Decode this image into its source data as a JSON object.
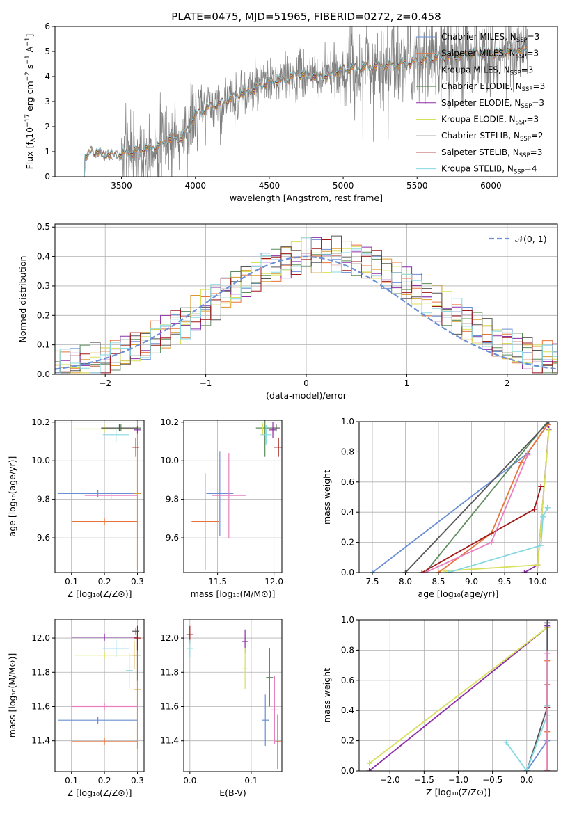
{
  "figure": {
    "title": "PLATE=0475, MJD=51965, FIBERID=0272, z=0.458"
  },
  "models": [
    {
      "name": "Chabrier MILES",
      "nssp": "3",
      "color": "#6a8fd4"
    },
    {
      "name": "Salpeter MILES",
      "nssp": "3",
      "color": "#e8743b"
    },
    {
      "name": "Kroupa MILES",
      "nssp": "3",
      "color": "#d99a2b"
    },
    {
      "name": "Chabrier ELODIE",
      "nssp": "3",
      "color": "#5c8a5c"
    },
    {
      "name": "Salpeter ELODIE",
      "nssp": "3",
      "color": "#8e2ca8"
    },
    {
      "name": "Kroupa ELODIE",
      "nssp": "3",
      "color": "#d7e05a"
    },
    {
      "name": "Chabrier STELIB",
      "nssp": "2",
      "color": "#555555"
    },
    {
      "name": "Salpeter STELIB",
      "nssp": "3",
      "color": "#a01818"
    },
    {
      "name": "Kroupa STELIB",
      "nssp": "4",
      "color": "#86d8e0"
    }
  ],
  "colors": {
    "data": "#808080",
    "gaussian": "#6a8fd4",
    "grid": "#b0b0b0",
    "pink": "#e87fbf"
  },
  "chart_data": [
    {
      "id": "spectrum",
      "type": "line",
      "title": "PLATE=0475, MJD=51965, FIBERID=0272, z=0.458",
      "xlabel": "wavelength [Angstrom, rest frame]",
      "ylabel": "Flux [f",
      "xlim": [
        3050,
        6450
      ],
      "ylim": [
        0,
        6
      ],
      "xticks": [
        "3500",
        "4000",
        "4500",
        "5000",
        "5500",
        "6000"
      ],
      "yticks": [
        "0",
        "1",
        "2",
        "3",
        "4",
        "5",
        "6"
      ],
      "x": [
        3250,
        3300,
        3350,
        3400,
        3450,
        3500,
        3550,
        3600,
        3650,
        3700,
        3750,
        3800,
        3850,
        3900,
        3950,
        4000,
        4100,
        4200,
        4300,
        4400,
        4500,
        4600,
        4700,
        4800,
        4900,
        5000,
        5100,
        5200,
        5300,
        5400,
        5500,
        5600,
        5700,
        5800,
        5900,
        6000,
        6100,
        6200
      ],
      "model_flux": [
        0.7,
        1.05,
        0.95,
        0.9,
        0.85,
        0.9,
        0.95,
        1.0,
        1.1,
        1.15,
        1.25,
        1.4,
        1.6,
        1.5,
        1.9,
        2.5,
        2.8,
        3.0,
        3.3,
        3.5,
        3.8,
        3.85,
        4.1,
        4.0,
        4.0,
        4.3,
        4.35,
        4.4,
        4.45,
        4.5,
        4.6,
        4.75,
        4.8,
        4.85,
        4.95,
        4.9,
        5.0,
        5.05
      ],
      "noise_scale": 0.55
    },
    {
      "id": "residuals",
      "type": "line",
      "xlabel": "(data-model)/error",
      "ylabel": "Normed distribution",
      "xlim": [
        -2.5,
        2.5
      ],
      "ylim": [
        0,
        0.51
      ],
      "xticks": [
        "−2",
        "−1",
        "0",
        "1",
        "2"
      ],
      "yticks": [
        "0.0",
        "0.1",
        "0.2",
        "0.3",
        "0.4",
        "0.5"
      ],
      "legend": "𝒩(0, 1)",
      "bin_width": 0.1
    },
    {
      "id": "age_vs_Z",
      "type": "scatter",
      "xlabel": "Z [log₁₀(Z/Z⊙)]",
      "ylabel": "age  [log₁₀(age/yr)]",
      "xlim": [
        0.05,
        0.32
      ],
      "ylim": [
        9.42,
        10.21
      ],
      "xticks": [
        "0.1",
        "0.2",
        "0.3"
      ],
      "yticks": [
        "9.6",
        "9.8",
        "10.0",
        "10.2"
      ],
      "points": [
        {
          "m": 0,
          "x": 0.18,
          "y": 9.83,
          "xerr": 0.12,
          "yerr": 0.0
        },
        {
          "m": 1,
          "x": 0.2,
          "y": 9.685,
          "xerr": 0.1,
          "yerr": 0.0
        },
        {
          "m": 2,
          "x": 0.3,
          "y": 9.83,
          "xerr": 0.0,
          "yerr": 0.4
        },
        {
          "m": 3,
          "x": 0.25,
          "y": 10.17,
          "xerr": 0.06,
          "yerr": 0.01
        },
        {
          "m": 4,
          "x": 0.3,
          "y": 10.16,
          "xerr": 0.0,
          "yerr": 0.02
        },
        {
          "m": 5,
          "x": 0.2,
          "y": 10.165,
          "xerr": 0.09,
          "yerr": 0.01
        },
        {
          "m": 6,
          "x": 0.245,
          "y": 10.17,
          "xerr": 0.055,
          "yerr": 0.01
        },
        {
          "m": 7,
          "x": 0.295,
          "y": 10.07,
          "xerr": 0.008,
          "yerr": 0.05
        },
        {
          "m": 8,
          "x": 0.235,
          "y": 10.135,
          "xerr": 0.04,
          "yerr": 0.04
        },
        {
          "m": 9,
          "x": 0.22,
          "y": 9.82,
          "xerr": 0.08,
          "yerr": 0.0
        }
      ]
    },
    {
      "id": "age_vs_mass",
      "type": "scatter",
      "xlabel": "mass [log₁₀(M/M⊙)]",
      "ylabel": "",
      "xlim": [
        11.2,
        12.07
      ],
      "ylim": [
        9.42,
        10.21
      ],
      "xticks": [
        "11.5",
        "12.0"
      ],
      "yticks": [
        "9.6",
        "9.8",
        "10.0",
        "10.2"
      ],
      "points": [
        {
          "m": 0,
          "x": 11.52,
          "y": 9.83,
          "xerr": 0.12,
          "yerr": 0.22
        },
        {
          "m": 1,
          "x": 11.39,
          "y": 9.685,
          "xerr": 0.12,
          "yerr": 0.25
        },
        {
          "m": 3,
          "x": 11.92,
          "y": 10.17,
          "xerr": 0.08,
          "yerr": 0.15
        },
        {
          "m": 5,
          "x": 11.9,
          "y": 10.165,
          "xerr": 0.05,
          "yerr": 0.03
        },
        {
          "m": 6,
          "x": 12.02,
          "y": 10.17,
          "xerr": 0.02,
          "yerr": 0.01
        },
        {
          "m": 4,
          "x": 11.99,
          "y": 10.16,
          "xerr": 0.02,
          "yerr": 0.04
        },
        {
          "m": 7,
          "x": 12.04,
          "y": 10.07,
          "xerr": 0.04,
          "yerr": 0.05
        },
        {
          "m": 8,
          "x": 11.93,
          "y": 10.135,
          "xerr": 0.05,
          "yerr": 0.05
        },
        {
          "m": 9,
          "x": 11.6,
          "y": 9.82,
          "xerr": 0.15,
          "yerr": 0.22
        }
      ]
    },
    {
      "id": "mass_weight_vs_age",
      "type": "line",
      "xlabel": "age  [log₁₀(age/yr)]",
      "ylabel": "mass weight",
      "xlim": [
        7.3,
        10.3
      ],
      "ylim": [
        0,
        1
      ],
      "xticks": [
        "7.5",
        "8.0",
        "8.5",
        "9.0",
        "9.5",
        "10.0"
      ],
      "yticks": [
        "0.0",
        "0.2",
        "0.4",
        "0.6",
        "0.8",
        "1.0"
      ],
      "series": [
        {
          "m": 0,
          "x": [
            7.5,
            9.85,
            10.15
          ],
          "y": [
            0.0,
            0.79,
            0.98
          ]
        },
        {
          "m": 1,
          "x": [
            8.5,
            9.3,
            9.75,
            10.15
          ],
          "y": [
            0.0,
            0.26,
            0.73,
            0.98
          ]
        },
        {
          "m": 3,
          "x": [
            8.3,
            10.15
          ],
          "y": [
            0.0,
            1.0
          ]
        },
        {
          "m": 4,
          "x": [
            9.8,
            10.0,
            10.17
          ],
          "y": [
            0.0,
            0.05,
            0.95
          ]
        },
        {
          "m": 5,
          "x": [
            8.6,
            10.0,
            10.17
          ],
          "y": [
            0.01,
            0.05,
            0.94
          ]
        },
        {
          "m": 6,
          "x": [
            8.0,
            10.17
          ],
          "y": [
            0.0,
            1.0
          ]
        },
        {
          "m": 7,
          "x": [
            8.25,
            9.95,
            10.05
          ],
          "y": [
            0.0,
            0.42,
            0.57
          ]
        },
        {
          "m": 8,
          "x": [
            8.65,
            10.05,
            10.08,
            10.15
          ],
          "y": [
            0.0,
            0.18,
            0.37,
            0.43
          ]
        },
        {
          "m": 9,
          "x": [
            8.3,
            9.3,
            9.85
          ],
          "y": [
            0.0,
            0.2,
            0.78
          ]
        }
      ]
    },
    {
      "id": "mass_vs_Z",
      "type": "scatter",
      "xlabel": "Z [log₁₀(Z/Z⊙)]",
      "ylabel": "mass [log₁₀(M/M⊙)]",
      "xlim": [
        0.05,
        0.32
      ],
      "ylim": [
        11.22,
        12.11
      ],
      "xticks": [
        "0.1",
        "0.2",
        "0.3"
      ],
      "yticks": [
        "11.4",
        "11.6",
        "11.8",
        "12.0"
      ],
      "points": [
        {
          "m": 0,
          "x": 0.18,
          "y": 11.52,
          "xerr": 0.12,
          "yerr": 0.0
        },
        {
          "m": 1,
          "x": 0.2,
          "y": 11.395,
          "xerr": 0.1,
          "yerr": 0.0
        },
        {
          "m": 2,
          "x": 0.3,
          "y": 11.7,
          "xerr": 0.0,
          "yerr": 0.35
        },
        {
          "m": 3,
          "x": 0.3,
          "y": 11.9,
          "xerr": 0.0,
          "yerr": 0.15
        },
        {
          "m": 4,
          "x": 0.2,
          "y": 12.005,
          "xerr": 0.1,
          "yerr": 0.0
        },
        {
          "m": 5,
          "x": 0.2,
          "y": 11.9,
          "xerr": 0.09,
          "yerr": 0.0
        },
        {
          "m": 6,
          "x": 0.295,
          "y": 12.04,
          "xerr": 0.008,
          "yerr": 0.02
        },
        {
          "m": 7,
          "x": 0.3,
          "y": 12.0,
          "xerr": 0.0,
          "yerr": 0.07
        },
        {
          "m": 8,
          "x": 0.235,
          "y": 11.94,
          "xerr": 0.04,
          "yerr": 0.05
        },
        {
          "m": 9,
          "x": 0.2,
          "y": 11.6,
          "xerr": 0.1,
          "yerr": 0.0
        },
        {
          "m": 10,
          "x": 0.29,
          "y": 11.9,
          "xerr": 0.0,
          "yerr": 0.08
        },
        {
          "m": 11,
          "x": 0.275,
          "y": 11.81,
          "xerr": 0.0,
          "yerr": 0.1
        }
      ]
    },
    {
      "id": "mass_vs_EBV",
      "type": "scatter",
      "xlabel": "E(B-V)",
      "ylabel": "",
      "xlim": [
        -0.01,
        0.15
      ],
      "ylim": [
        11.22,
        12.11
      ],
      "xticks": [
        "0.0",
        "0.1"
      ],
      "yticks": [
        "11.4",
        "11.6",
        "11.8",
        "12.0"
      ],
      "points": [
        {
          "m": 0,
          "x": 0.123,
          "y": 11.52,
          "xerr": 0.0,
          "yerr": 0.15
        },
        {
          "m": 1,
          "x": 0.143,
          "y": 11.395,
          "xerr": 0.0,
          "yerr": 0.16
        },
        {
          "m": 3,
          "x": 0.13,
          "y": 11.77,
          "xerr": 0.0,
          "yerr": 0.17
        },
        {
          "m": 4,
          "x": 0.09,
          "y": 11.98,
          "xerr": 0.0,
          "yerr": 0.07
        },
        {
          "m": 5,
          "x": 0.09,
          "y": 11.82,
          "xerr": 0.0,
          "yerr": 0.12
        },
        {
          "m": 7,
          "x": 0.0,
          "y": 12.02,
          "xerr": 0.0,
          "yerr": 0.05
        },
        {
          "m": 8,
          "x": 0.0,
          "y": 11.94,
          "xerr": 0.0,
          "yerr": 0.05
        },
        {
          "m": 9,
          "x": 0.138,
          "y": 11.58,
          "xerr": 0.0,
          "yerr": 0.2
        }
      ]
    },
    {
      "id": "mass_weight_vs_Z",
      "type": "line",
      "xlabel": "Z [log₁₀(Z/Z⊙)]",
      "ylabel": "mass weight",
      "xlim": [
        -2.45,
        0.45
      ],
      "ylim": [
        0,
        1
      ],
      "xticks": [
        "−2.0",
        "−1.5",
        "−1.0",
        "−0.5",
        "0.0"
      ],
      "yticks": [
        "0.0",
        "0.2",
        "0.4",
        "0.6",
        "0.8",
        "1.0"
      ],
      "series": [
        {
          "m": 0,
          "x": [
            0.0,
            0.3,
            0.3
          ],
          "y": [
            0.0,
            0.2,
            0.98
          ]
        },
        {
          "m": 4,
          "x": [
            -2.3,
            0.3,
            0.3
          ],
          "y": [
            0.0,
            0.95,
            0.96
          ]
        },
        {
          "m": 5,
          "x": [
            -2.3,
            0.3
          ],
          "y": [
            0.05,
            0.95
          ]
        },
        {
          "m": 6,
          "x": [
            0.0,
            0.3,
            0.3
          ],
          "y": [
            0.0,
            0.42,
            0.98
          ]
        },
        {
          "m": 7,
          "x": [
            0.3,
            0.3,
            0.3
          ],
          "y": [
            0.0,
            0.42,
            0.57
          ]
        },
        {
          "m": 8,
          "x": [
            -0.3,
            0.0,
            0.3,
            0.3
          ],
          "y": [
            0.19,
            0.0,
            0.37,
            0.43
          ]
        },
        {
          "m": 1,
          "x": [
            0.3,
            0.3,
            0.3
          ],
          "y": [
            0.0,
            0.26,
            0.73
          ]
        },
        {
          "m": 9,
          "x": [
            0.3,
            0.3
          ],
          "y": [
            0.0,
            0.78
          ]
        }
      ]
    }
  ]
}
